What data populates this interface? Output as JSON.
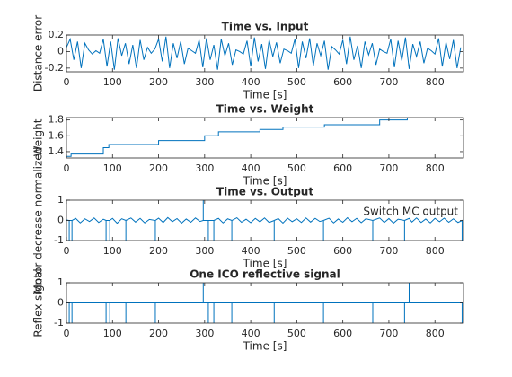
{
  "chart_data": [
    {
      "type": "line",
      "title": "Time vs. Input",
      "x_label": "Time [s]",
      "y_label": "Distance error",
      "xlim": [
        0,
        862
      ],
      "xticks": [
        0,
        100,
        200,
        300,
        400,
        500,
        600,
        700,
        800
      ],
      "ylim": [
        -0.245,
        0.2
      ],
      "yticks": [
        -0.2,
        0,
        0.2
      ],
      "x": [
        0,
        8,
        16,
        24,
        32,
        40,
        48,
        56,
        64,
        72,
        80,
        88,
        96,
        104,
        112,
        120,
        128,
        136,
        144,
        152,
        160,
        168,
        176,
        184,
        192,
        200,
        208,
        216,
        224,
        232,
        240,
        248,
        256,
        264,
        272,
        280,
        288,
        296,
        304,
        312,
        320,
        328,
        336,
        344,
        352,
        360,
        368,
        376,
        384,
        392,
        400,
        408,
        416,
        424,
        432,
        440,
        448,
        456,
        464,
        472,
        480,
        488,
        496,
        504,
        512,
        520,
        528,
        536,
        544,
        552,
        560,
        568,
        576,
        584,
        592,
        600,
        608,
        616,
        624,
        632,
        640,
        648,
        656,
        664,
        672,
        680,
        688,
        696,
        704,
        712,
        720,
        728,
        736,
        744,
        752,
        760,
        768,
        776,
        784,
        792,
        800,
        808,
        816,
        824,
        832,
        840,
        848,
        856
      ],
      "series": [
        {
          "color": "#0072bd",
          "values": [
            0.05,
            0.15,
            -0.1,
            0.12,
            -0.2,
            0.1,
            0.02,
            -0.03,
            0.01,
            -0.02,
            0.15,
            -0.18,
            0.12,
            -0.22,
            0.16,
            -0.05,
            0.1,
            -0.15,
            0.08,
            -0.2,
            0.14,
            -0.1,
            0.05,
            -0.02,
            0.03,
            0.15,
            -0.12,
            0.18,
            -0.2,
            0.1,
            -0.08,
            0.12,
            -0.15,
            0.04,
            0.01,
            -0.02,
            0.14,
            -0.19,
            0.16,
            -0.1,
            0.08,
            -0.22,
            0.15,
            -0.05,
            0.1,
            -0.16,
            0.02,
            0.0,
            -0.03,
            0.13,
            -0.18,
            0.17,
            -0.12,
            0.09,
            -0.21,
            0.14,
            -0.06,
            0.11,
            -0.14,
            0.03,
            0.01,
            -0.02,
            0.15,
            -0.2,
            0.12,
            -0.08,
            0.16,
            -0.17,
            0.1,
            -0.05,
            0.13,
            -0.22,
            0.06,
            0.02,
            -0.03,
            0.14,
            -0.15,
            0.18,
            -0.1,
            0.07,
            -0.2,
            0.12,
            -0.04,
            0.1,
            -0.16,
            0.03,
            0.0,
            -0.02,
            0.15,
            -0.19,
            0.13,
            -0.11,
            0.17,
            -0.21,
            0.09,
            -0.06,
            0.12,
            -0.14,
            0.04,
            0.01,
            -0.03,
            0.16,
            -0.18,
            0.11,
            -0.09,
            0.14,
            -0.2,
            0.05
          ]
        }
      ]
    },
    {
      "type": "line",
      "title": "Time vs. Weight",
      "x_label": "Time [s]",
      "y_label": "Weight",
      "xlim": [
        0,
        862
      ],
      "xticks": [
        0,
        100,
        200,
        300,
        400,
        500,
        600,
        700,
        800
      ],
      "ylim": [
        1.32,
        1.83
      ],
      "yticks": [
        1.4,
        1.6,
        1.8
      ],
      "x": [
        0,
        10,
        10,
        80,
        80,
        92,
        92,
        200,
        200,
        300,
        300,
        330,
        330,
        420,
        420,
        470,
        470,
        560,
        560,
        680,
        680,
        740,
        740,
        862
      ],
      "series": [
        {
          "color": "#0072bd",
          "values": [
            1.34,
            1.34,
            1.37,
            1.37,
            1.45,
            1.45,
            1.49,
            1.49,
            1.54,
            1.54,
            1.6,
            1.6,
            1.65,
            1.65,
            1.68,
            1.68,
            1.71,
            1.71,
            1.74,
            1.74,
            1.8,
            1.8,
            1.83,
            1.83
          ]
        }
      ]
    },
    {
      "type": "line",
      "title": "Time vs. Output",
      "x_label": "Time [s]",
      "y_label": "Motor decrease normalized",
      "xlim": [
        0,
        862
      ],
      "xticks": [
        0,
        100,
        200,
        300,
        400,
        500,
        600,
        700,
        800
      ],
      "ylim": [
        -1,
        1
      ],
      "yticks": [
        -1,
        0,
        1
      ],
      "legend": "upper right",
      "x": [
        0,
        6,
        6,
        6,
        12,
        12,
        12,
        20,
        30,
        40,
        50,
        60,
        70,
        80,
        86,
        86,
        86,
        94,
        94,
        94,
        100,
        110,
        120,
        129,
        129,
        129,
        140,
        150,
        160,
        170,
        180,
        193,
        193,
        193,
        200,
        210,
        220,
        230,
        240,
        250,
        260,
        270,
        280,
        290,
        297,
        297,
        297,
        308,
        308,
        308,
        320,
        320,
        320,
        330,
        340,
        350,
        359,
        359,
        359,
        370,
        380,
        390,
        400,
        410,
        420,
        430,
        440,
        451,
        451,
        451,
        460,
        470,
        480,
        490,
        500,
        510,
        520,
        530,
        540,
        550,
        558,
        558,
        558,
        570,
        580,
        590,
        600,
        610,
        620,
        630,
        640,
        650,
        665,
        665,
        665,
        680,
        690,
        700,
        710,
        720,
        734,
        734,
        734,
        744,
        750,
        760,
        770,
        780,
        790,
        800,
        810,
        820,
        830,
        840,
        850,
        859,
        859,
        859,
        862
      ],
      "series": [
        {
          "name": "Switch MC output",
          "color": "#0072bd",
          "values": [
            0.02,
            0,
            -1,
            0,
            0,
            -1,
            0,
            0.1,
            -0.12,
            0.08,
            -0.05,
            0.12,
            -0.1,
            0.06,
            0,
            -1,
            0,
            0,
            -1,
            0,
            0.1,
            -0.14,
            0.08,
            0,
            -1,
            0,
            0.12,
            -0.08,
            0.1,
            -0.12,
            0.05,
            0,
            -1,
            0,
            0.11,
            -0.1,
            0.14,
            -0.06,
            0.09,
            -0.13,
            0.07,
            -0.09,
            0.12,
            -0.05,
            0,
            1,
            0,
            0,
            -1,
            0,
            0,
            -1,
            0,
            0.1,
            -0.12,
            0.08,
            0,
            -1,
            0,
            0.13,
            -0.09,
            0.06,
            -0.11,
            0.1,
            -0.07,
            0.12,
            -0.1,
            0,
            -1,
            0,
            0.09,
            -0.13,
            0.11,
            -0.06,
            0.08,
            -0.1,
            0.12,
            -0.08,
            0.1,
            -0.05,
            0,
            -1,
            0,
            0.11,
            -0.12,
            0.07,
            -0.09,
            0.13,
            -0.06,
            0.1,
            -0.11,
            0.08,
            0,
            -1,
            0,
            0.12,
            -0.1,
            0.09,
            -0.13,
            0.06,
            0,
            -1,
            0,
            0.1,
            -0.08,
            0.12,
            -0.1,
            0.07,
            -0.12,
            0.1,
            -0.06,
            0.11,
            -0.09,
            0.08,
            -0.1,
            0,
            -1,
            0,
            0.02
          ]
        }
      ]
    },
    {
      "type": "line",
      "title": "One ICO reflective signal",
      "x_label": "Time [s]",
      "y_label": "Reflex signal",
      "xlim": [
        0,
        862
      ],
      "xticks": [
        0,
        100,
        200,
        300,
        400,
        500,
        600,
        700,
        800
      ],
      "ylim": [
        -1,
        1
      ],
      "yticks": [
        -1,
        0,
        1
      ],
      "x": [
        0,
        6,
        6,
        6,
        12,
        12,
        12,
        86,
        86,
        86,
        94,
        94,
        94,
        129,
        129,
        129,
        193,
        193,
        193,
        297,
        297,
        297,
        308,
        308,
        308,
        320,
        320,
        320,
        359,
        359,
        359,
        451,
        451,
        451,
        558,
        558,
        558,
        665,
        665,
        665,
        734,
        734,
        734,
        744,
        744,
        744,
        859,
        859,
        859,
        862
      ],
      "series": [
        {
          "color": "#0072bd",
          "values": [
            0,
            0,
            -1,
            0,
            0,
            -1,
            0,
            0,
            -1,
            0,
            0,
            -1,
            0,
            0,
            -1,
            0,
            0,
            -1,
            0,
            0,
            1,
            0,
            0,
            -1,
            0,
            0,
            -1,
            0,
            0,
            -1,
            0,
            0,
            -1,
            0,
            0,
            -1,
            0,
            0,
            -1,
            0,
            0,
            -1,
            0,
            0,
            1,
            0,
            0,
            -1,
            0,
            0
          ]
        }
      ]
    }
  ]
}
